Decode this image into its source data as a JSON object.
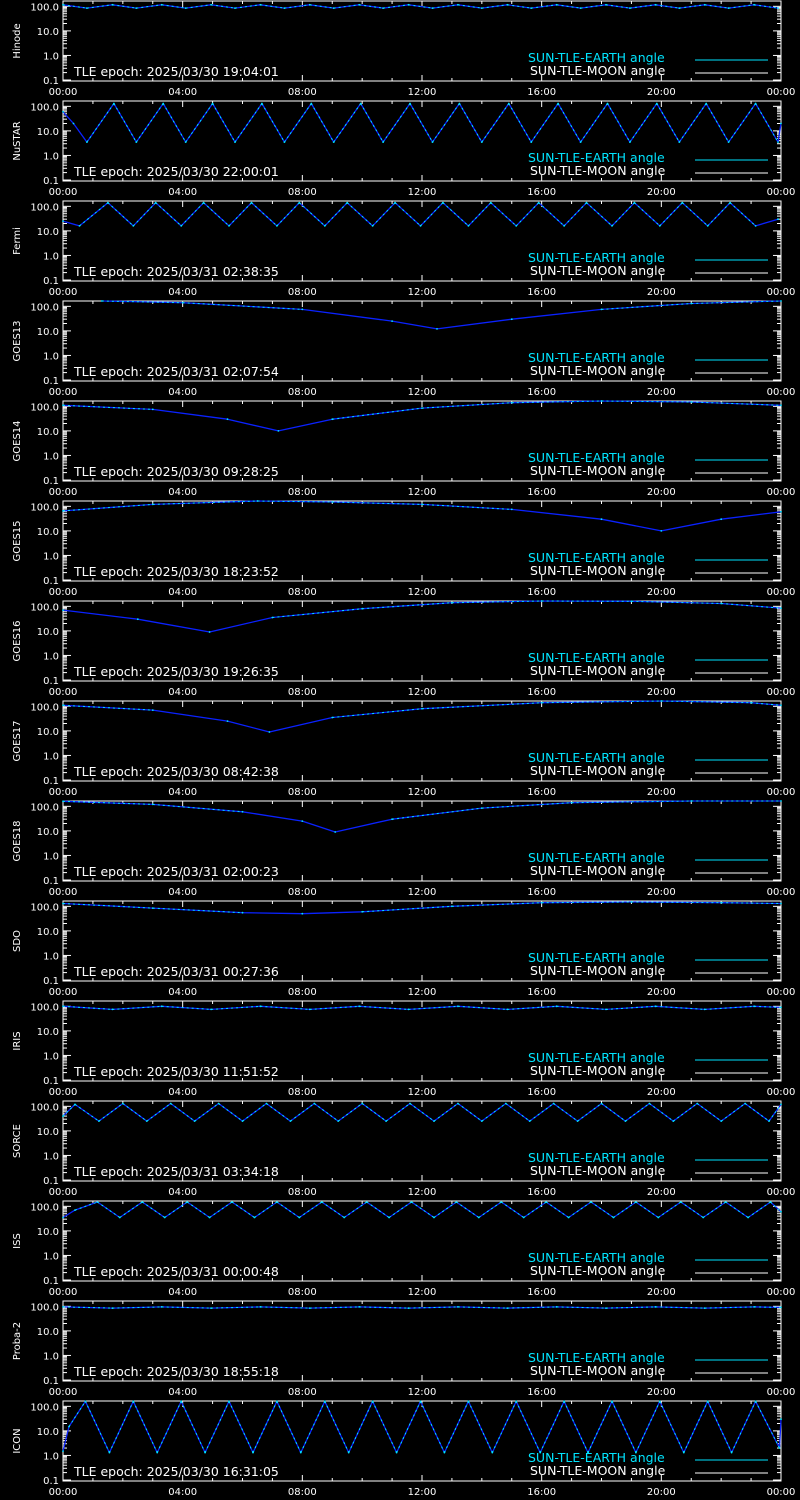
{
  "colors": {
    "background": "#000000",
    "frame": "#ffffff",
    "sun_tle_earth": "#00e5ff",
    "sun_tle_moon": "#ffffff",
    "night_segment": "#0a22ff"
  },
  "legend": {
    "earth_label": "SUN-TLE-EARTH angle",
    "moon_label": "SUN-TLE-MOON angle"
  },
  "x_ticks": [
    "00:00",
    "04:00",
    "08:00",
    "12:00",
    "16:00",
    "20:00",
    "00:00"
  ],
  "y_ticks": [
    "100.0",
    "10.0",
    "1.0",
    "0.1"
  ],
  "chart_data": [
    {
      "type": "line",
      "satellite": "Hinode",
      "epoch": "TLE epoch: 2025/03/30 19:04:01",
      "xlim": [
        0,
        24
      ],
      "ylim": [
        0.1,
        150
      ],
      "y_scale": "log",
      "legend_placement": "bottom-right",
      "series": [
        {
          "name": "SUN-TLE-EARTH angle",
          "x": [
            0,
            0.8,
            1.65,
            2.45,
            3.3,
            4.1,
            4.95,
            5.75,
            6.6,
            7.4,
            8.25,
            9.05,
            9.9,
            10.7,
            11.55,
            12.35,
            13.2,
            14.0,
            14.85,
            15.65,
            16.5,
            17.3,
            18.15,
            18.95,
            19.8,
            20.6,
            21.45,
            22.25,
            23.1,
            23.9
          ],
          "y": [
            115,
            85,
            115,
            85,
            115,
            85,
            115,
            85,
            115,
            85,
            115,
            85,
            115,
            85,
            115,
            85,
            115,
            85,
            115,
            85,
            115,
            85,
            115,
            85,
            115,
            85,
            115,
            85,
            115,
            85
          ]
        }
      ]
    },
    {
      "type": "line",
      "satellite": "NuSTAR",
      "epoch": "TLE epoch: 2025/03/30 22:00:01",
      "xlim": [
        0,
        24
      ],
      "ylim": [
        0.1,
        150
      ],
      "y_scale": "log",
      "legend_placement": "bottom-right",
      "series": [
        {
          "name": "SUN-TLE-EARTH angle",
          "x": [
            0,
            0.35,
            0.8,
            1.7,
            2.45,
            3.35,
            4.1,
            5.0,
            5.75,
            6.65,
            7.4,
            8.3,
            9.05,
            9.95,
            10.7,
            11.6,
            12.35,
            13.25,
            14.0,
            14.9,
            15.65,
            16.55,
            17.3,
            18.2,
            18.95,
            19.85,
            20.6,
            21.5,
            22.25,
            23.15,
            23.9,
            24
          ],
          "y": [
            60,
            20,
            3.5,
            130,
            3.5,
            130,
            3.5,
            130,
            3.5,
            130,
            3.5,
            130,
            3.5,
            130,
            3.5,
            130,
            3.5,
            130,
            3.5,
            130,
            3.5,
            130,
            3.5,
            130,
            3.5,
            130,
            3.5,
            130,
            3.5,
            130,
            3.5,
            20
          ]
        }
      ]
    },
    {
      "type": "line",
      "satellite": "Fermi",
      "epoch": "TLE epoch: 2025/03/31 02:38:35",
      "xlim": [
        0,
        24
      ],
      "ylim": [
        0.1,
        150
      ],
      "y_scale": "log",
      "legend_placement": "bottom-right",
      "series": [
        {
          "name": "SUN-TLE-EARTH angle",
          "x": [
            0,
            0.55,
            1.5,
            2.35,
            3.1,
            3.95,
            4.7,
            5.55,
            6.3,
            7.15,
            7.9,
            8.75,
            9.5,
            10.35,
            11.1,
            11.95,
            12.7,
            13.55,
            14.3,
            15.15,
            15.9,
            16.75,
            17.5,
            18.35,
            19.1,
            19.95,
            20.7,
            21.55,
            22.3,
            23.15,
            23.9
          ],
          "y": [
            25,
            16,
            140,
            16,
            140,
            16,
            140,
            16,
            140,
            16,
            140,
            16,
            140,
            16,
            140,
            16,
            140,
            16,
            140,
            16,
            140,
            16,
            140,
            16,
            140,
            16,
            140,
            16,
            140,
            16,
            30
          ]
        }
      ]
    },
    {
      "type": "line",
      "satellite": "GOES13",
      "epoch": "TLE epoch: 2025/03/31 02:07:54",
      "xlim": [
        0,
        24
      ],
      "ylim": [
        0.1,
        150
      ],
      "y_scale": "log",
      "legend_placement": "bottom-right",
      "series": [
        {
          "name": "SUN-TLE-EARTH angle",
          "x": [
            1.3,
            4,
            8,
            11,
            12.5,
            15,
            18,
            21,
            24
          ],
          "y": [
            165,
            140,
            75,
            25,
            12,
            30,
            75,
            130,
            165
          ]
        }
      ]
    },
    {
      "type": "line",
      "satellite": "GOES14",
      "epoch": "TLE epoch: 2025/03/30 09:28:25",
      "xlim": [
        0,
        24
      ],
      "ylim": [
        0.1,
        150
      ],
      "y_scale": "log",
      "legend_placement": "bottom-right",
      "series": [
        {
          "name": "SUN-TLE-EARTH angle",
          "x": [
            0,
            3,
            5.5,
            7.2,
            9,
            12,
            15,
            18,
            21,
            24
          ],
          "y": [
            110,
            75,
            30,
            10,
            30,
            85,
            140,
            165,
            150,
            110
          ]
        }
      ]
    },
    {
      "type": "line",
      "satellite": "GOES15",
      "epoch": "TLE epoch: 2025/03/30 18:23:52",
      "xlim": [
        0,
        24
      ],
      "ylim": [
        0.1,
        150
      ],
      "y_scale": "log",
      "legend_placement": "bottom-right",
      "series": [
        {
          "name": "SUN-TLE-EARTH angle",
          "x": [
            0,
            3,
            6.5,
            9,
            12,
            15,
            18,
            20,
            22,
            24
          ],
          "y": [
            65,
            120,
            165,
            150,
            120,
            75,
            30,
            10,
            30,
            60
          ]
        }
      ]
    },
    {
      "type": "line",
      "satellite": "GOES16",
      "epoch": "TLE epoch: 2025/03/30 19:26:35",
      "xlim": [
        0,
        24
      ],
      "ylim": [
        0.1,
        150
      ],
      "y_scale": "log",
      "legend_placement": "bottom-right",
      "series": [
        {
          "name": "SUN-TLE-EARTH angle",
          "x": [
            0,
            2.5,
            4.9,
            7,
            10,
            13,
            16,
            19,
            22,
            24
          ],
          "y": [
            70,
            30,
            9,
            35,
            80,
            140,
            165,
            160,
            130,
            85
          ]
        }
      ]
    },
    {
      "type": "line",
      "satellite": "GOES17",
      "epoch": "TLE epoch: 2025/03/30 08:42:38",
      "xlim": [
        0,
        24
      ],
      "ylim": [
        0.1,
        150
      ],
      "y_scale": "log",
      "legend_placement": "bottom-right",
      "series": [
        {
          "name": "SUN-TLE-EARTH angle",
          "x": [
            0,
            3,
            5.5,
            6.9,
            9,
            12,
            16,
            20,
            23,
            24
          ],
          "y": [
            110,
            70,
            25,
            9,
            35,
            80,
            140,
            165,
            140,
            110
          ]
        }
      ]
    },
    {
      "type": "line",
      "satellite": "GOES18",
      "epoch": "TLE epoch: 2025/03/31 02:00:23",
      "xlim": [
        0,
        24
      ],
      "ylim": [
        0.1,
        150
      ],
      "y_scale": "log",
      "legend_placement": "bottom-right",
      "series": [
        {
          "name": "SUN-TLE-EARTH angle",
          "x": [
            0,
            3,
            6,
            8,
            9.1,
            11,
            14,
            17,
            21,
            24
          ],
          "y": [
            160,
            120,
            60,
            25,
            9,
            30,
            85,
            140,
            165,
            165
          ]
        }
      ]
    },
    {
      "type": "line",
      "satellite": "SDO",
      "epoch": "TLE epoch: 2025/03/31 00:27:36",
      "xlim": [
        0,
        24
      ],
      "ylim": [
        0.1,
        150
      ],
      "y_scale": "log",
      "legend_placement": "bottom-right",
      "series": [
        {
          "name": "SUN-TLE-EARTH angle",
          "x": [
            0,
            3,
            6,
            8,
            10,
            13,
            16,
            19,
            22,
            24
          ],
          "y": [
            130,
            85,
            55,
            50,
            60,
            100,
            140,
            150,
            140,
            130
          ]
        }
      ]
    },
    {
      "type": "line",
      "satellite": "IRIS",
      "epoch": "TLE epoch: 2025/03/30 11:51:52",
      "xlim": [
        0,
        24
      ],
      "ylim": [
        0.1,
        150
      ],
      "y_scale": "log",
      "legend_placement": "bottom-right",
      "series": [
        {
          "name": "SUN-TLE-EARTH angle",
          "x": [
            0,
            1.65,
            3.3,
            4.95,
            6.6,
            8.25,
            9.9,
            11.55,
            13.2,
            14.85,
            16.5,
            18.15,
            19.8,
            21.45,
            23.1,
            24
          ],
          "y": [
            100,
            75,
            100,
            75,
            100,
            75,
            100,
            75,
            100,
            75,
            100,
            75,
            100,
            75,
            100,
            90
          ]
        }
      ]
    },
    {
      "type": "line",
      "satellite": "SORCE",
      "epoch": "TLE epoch: 2025/03/31 03:34:18",
      "xlim": [
        0,
        24
      ],
      "ylim": [
        0.1,
        150
      ],
      "y_scale": "log",
      "legend_placement": "bottom-right",
      "series": [
        {
          "name": "SUN-TLE-EARTH angle",
          "x": [
            0,
            0.4,
            1.2,
            2.0,
            2.8,
            3.6,
            4.4,
            5.2,
            6.0,
            6.8,
            7.6,
            8.4,
            9.2,
            10.0,
            10.8,
            11.6,
            12.4,
            13.2,
            14.0,
            14.8,
            15.6,
            16.4,
            17.2,
            18.0,
            18.8,
            19.6,
            20.4,
            21.2,
            22.0,
            22.8,
            23.6,
            24
          ],
          "y": [
            40,
            120,
            25,
            130,
            25,
            130,
            25,
            130,
            25,
            130,
            25,
            130,
            25,
            130,
            25,
            130,
            25,
            130,
            25,
            130,
            25,
            130,
            25,
            130,
            25,
            130,
            25,
            130,
            25,
            130,
            25,
            120
          ]
        }
      ]
    },
    {
      "type": "line",
      "satellite": "ISS",
      "epoch": "TLE epoch: 2025/03/31 00:00:48",
      "xlim": [
        0,
        24
      ],
      "ylim": [
        0.1,
        150
      ],
      "y_scale": "log",
      "legend_placement": "bottom-right",
      "series": [
        {
          "name": "SUN-TLE-EARTH angle",
          "x": [
            0,
            0.4,
            1.15,
            1.9,
            2.65,
            3.4,
            4.15,
            4.9,
            5.65,
            6.4,
            7.15,
            7.9,
            8.65,
            9.4,
            10.15,
            10.9,
            11.65,
            12.4,
            13.15,
            13.9,
            14.65,
            15.4,
            16.15,
            16.9,
            17.65,
            18.4,
            19.15,
            19.9,
            20.65,
            21.4,
            22.15,
            22.9,
            23.65,
            24
          ],
          "y": [
            35,
            70,
            150,
            35,
            150,
            35,
            150,
            35,
            150,
            35,
            150,
            35,
            150,
            35,
            150,
            35,
            150,
            35,
            150,
            35,
            150,
            35,
            150,
            35,
            150,
            35,
            150,
            35,
            150,
            35,
            150,
            35,
            150,
            60
          ]
        }
      ]
    },
    {
      "type": "line",
      "satellite": "Proba-2",
      "epoch": "TLE epoch: 2025/03/30 18:55:18",
      "xlim": [
        0,
        24
      ],
      "ylim": [
        0.1,
        150
      ],
      "y_scale": "log",
      "legend_placement": "bottom-right",
      "series": [
        {
          "name": "SUN-TLE-EARTH angle",
          "x": [
            0,
            1.65,
            3.3,
            4.95,
            6.6,
            8.25,
            9.9,
            11.55,
            13.2,
            14.85,
            16.5,
            18.15,
            19.8,
            21.45,
            23.1,
            24
          ],
          "y": [
            95,
            85,
            95,
            85,
            95,
            85,
            95,
            85,
            95,
            85,
            95,
            85,
            95,
            85,
            95,
            90
          ]
        }
      ]
    },
    {
      "type": "line",
      "satellite": "ICON",
      "epoch": "TLE epoch: 2025/03/30 16:31:05",
      "xlim": [
        0,
        24
      ],
      "ylim": [
        0.1,
        150
      ],
      "y_scale": "log",
      "legend_placement": "bottom-right",
      "series": [
        {
          "name": "SUN-TLE-EARTH angle",
          "x": [
            0,
            0.2,
            0.75,
            1.55,
            2.35,
            3.15,
            3.95,
            4.75,
            5.55,
            6.35,
            7.15,
            7.95,
            8.75,
            9.55,
            10.35,
            11.15,
            11.95,
            12.75,
            13.55,
            14.35,
            15.15,
            15.95,
            16.75,
            17.55,
            18.35,
            19.15,
            19.95,
            20.75,
            21.55,
            22.35,
            23.15,
            23.95,
            24
          ],
          "y": [
            1.5,
            15,
            160,
            1.3,
            160,
            1.3,
            160,
            1.3,
            160,
            1.3,
            160,
            1.3,
            160,
            1.3,
            160,
            1.3,
            160,
            1.3,
            160,
            1.3,
            160,
            1.3,
            160,
            1.3,
            160,
            1.3,
            160,
            1.3,
            160,
            1.3,
            160,
            2,
            30
          ]
        }
      ]
    }
  ]
}
